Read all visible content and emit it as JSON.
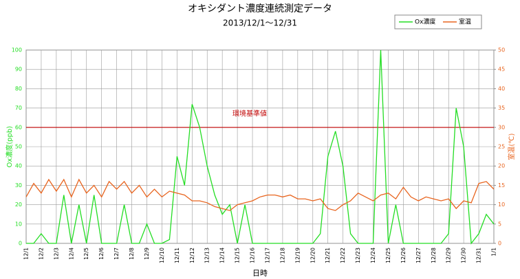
{
  "chart_data": {
    "type": "line",
    "title": "オキシダント濃度連続測定データ",
    "subtitle": "2013/12/1～12/31",
    "x_label": "日時",
    "y_label": "Ox濃度(ppb)",
    "y2_label": "室温(℃)",
    "legend": "top-right",
    "grid": true,
    "xlim": [
      0,
      31
    ],
    "xticks": [
      {
        "value": 0,
        "label": "12/1"
      },
      {
        "value": 1,
        "label": "12/2"
      },
      {
        "value": 2,
        "label": "12/3"
      },
      {
        "value": 3,
        "label": "12/4"
      },
      {
        "value": 4,
        "label": "12/5"
      },
      {
        "value": 5,
        "label": "12/6"
      },
      {
        "value": 6,
        "label": "12/7"
      },
      {
        "value": 7,
        "label": "12/8"
      },
      {
        "value": 8,
        "label": "12/9"
      },
      {
        "value": 9,
        "label": "12/10"
      },
      {
        "value": 10,
        "label": "12/11"
      },
      {
        "value": 11,
        "label": "12/12"
      },
      {
        "value": 12,
        "label": "12/13"
      },
      {
        "value": 13,
        "label": "12/14"
      },
      {
        "value": 14,
        "label": "12/15"
      },
      {
        "value": 15,
        "label": "12/16"
      },
      {
        "value": 16,
        "label": "12/17"
      },
      {
        "value": 17,
        "label": "12/18"
      },
      {
        "value": 18,
        "label": "12/19"
      },
      {
        "value": 19,
        "label": "12/20"
      },
      {
        "value": 20,
        "label": "12/21"
      },
      {
        "value": 21,
        "label": "12/22"
      },
      {
        "value": 22,
        "label": "12/23"
      },
      {
        "value": 23,
        "label": "12/24"
      },
      {
        "value": 24,
        "label": "12/25"
      },
      {
        "value": 25,
        "label": "12/26"
      },
      {
        "value": 26,
        "label": "12/27"
      },
      {
        "value": 27,
        "label": "12/28"
      },
      {
        "value": 28,
        "label": "12/29"
      },
      {
        "value": 29,
        "label": "12/30"
      },
      {
        "value": 30,
        "label": "12/31"
      },
      {
        "value": 31,
        "label": "1/1"
      }
    ],
    "ylim": [
      0,
      100
    ],
    "yticks": [
      0,
      10,
      20,
      30,
      40,
      50,
      60,
      70,
      80,
      90,
      100
    ],
    "y2lim": [
      0,
      50
    ],
    "y2ticks": [
      0,
      5,
      10,
      15,
      20,
      25,
      30,
      35,
      40,
      45,
      50
    ],
    "reference_line": {
      "value": 60,
      "label": "環境基準値",
      "color": "#c00000"
    },
    "x": [
      0,
      0.5,
      1,
      1.5,
      2,
      2.5,
      3,
      3.5,
      4,
      4.5,
      5,
      5.5,
      6,
      6.5,
      7,
      7.5,
      8,
      8.5,
      9,
      9.5,
      10,
      10.5,
      11,
      11.5,
      12,
      12.5,
      13,
      13.5,
      14,
      14.5,
      15,
      15.5,
      16,
      16.5,
      17,
      17.5,
      18,
      18.5,
      19,
      19.5,
      20,
      20.5,
      21,
      21.5,
      22,
      22.5,
      23,
      23.5,
      24,
      24.5,
      25,
      25.5,
      26,
      26.5,
      27,
      27.5,
      28,
      28.5,
      29,
      29.5,
      30,
      30.5,
      31
    ],
    "series": [
      {
        "name": "Ox濃度",
        "color": "#22dd22",
        "values": [
          0,
          0,
          5,
          0,
          0,
          25,
          0,
          20,
          0,
          25,
          0,
          0,
          0,
          20,
          0,
          0,
          10,
          0,
          0,
          2,
          45,
          30,
          72,
          60,
          40,
          25,
          15,
          20,
          0,
          20,
          0,
          0,
          0,
          0,
          0,
          0,
          0,
          0,
          0,
          5,
          45,
          58,
          40,
          5,
          0,
          0,
          0,
          100,
          0,
          20,
          0,
          0,
          0,
          0,
          0,
          0,
          5,
          70,
          50,
          0,
          5,
          15,
          10
        ]
      },
      {
        "name": "室温",
        "color": "#e8641e",
        "axis": "y2",
        "values": [
          12,
          15.5,
          13,
          16.5,
          13.5,
          16.5,
          12,
          16.5,
          13,
          15,
          12,
          16,
          14,
          16,
          13,
          15,
          12,
          14,
          12,
          13.5,
          13,
          12.5,
          11,
          11,
          10.5,
          9.5,
          9,
          8.5,
          10,
          10.5,
          11,
          12,
          12.5,
          12.5,
          12,
          12.5,
          11.5,
          11.5,
          11,
          11.5,
          9,
          8.5,
          10,
          11,
          13,
          12,
          11,
          12.5,
          13,
          11.5,
          14.5,
          12,
          11,
          12,
          11.5,
          11,
          11.5,
          9,
          11,
          10.5,
          15.5,
          16,
          14
        ]
      }
    ]
  }
}
